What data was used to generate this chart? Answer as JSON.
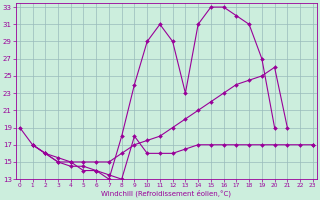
{
  "bg_color": "#cceedd",
  "grid_color": "#99bbbb",
  "line_color": "#990099",
  "xlim": [
    -0.3,
    23.3
  ],
  "ylim": [
    13,
    33.5
  ],
  "xticks": [
    0,
    1,
    2,
    3,
    4,
    5,
    6,
    7,
    8,
    9,
    10,
    11,
    12,
    13,
    14,
    15,
    16,
    17,
    18,
    19,
    20,
    21,
    22,
    23
  ],
  "yticks": [
    13,
    15,
    17,
    19,
    21,
    23,
    25,
    27,
    29,
    31,
    33
  ],
  "xlabel": "Windchill (Refroidissement éolien,°C)",
  "series": [
    {
      "x": [
        0,
        1,
        2,
        3,
        4,
        5,
        6,
        7,
        8,
        9,
        10,
        11,
        12,
        13,
        14,
        15,
        16,
        17,
        18,
        19,
        20,
        21,
        22,
        23
      ],
      "y": [
        19,
        17,
        16,
        15,
        15,
        14,
        14,
        13,
        18,
        24,
        29,
        31,
        29,
        23,
        31,
        33,
        33,
        32,
        31,
        27,
        19,
        null,
        null,
        null
      ]
    },
    {
      "x": [
        0,
        1,
        2,
        3,
        4,
        5,
        6,
        7,
        8,
        9,
        10,
        11,
        12,
        13,
        14,
        15,
        16,
        17,
        18,
        19,
        20,
        21,
        22,
        23
      ],
      "y": [
        null,
        17,
        16,
        15.5,
        15,
        15,
        15,
        15,
        16,
        17,
        17.5,
        18,
        19,
        20,
        21,
        22,
        23,
        24,
        24.5,
        25,
        26,
        19,
        null,
        17
      ]
    },
    {
      "x": [
        1,
        2,
        3,
        4,
        5,
        6,
        7,
        8,
        9,
        10,
        11,
        12,
        13,
        14,
        15,
        16,
        17,
        18,
        19,
        20,
        21,
        22,
        23
      ],
      "y": [
        17,
        16,
        15,
        14.5,
        14.5,
        14,
        13.5,
        13,
        18,
        16,
        16,
        16,
        16.5,
        17,
        17,
        17,
        17,
        17,
        17,
        17,
        17,
        17,
        17
      ]
    }
  ]
}
